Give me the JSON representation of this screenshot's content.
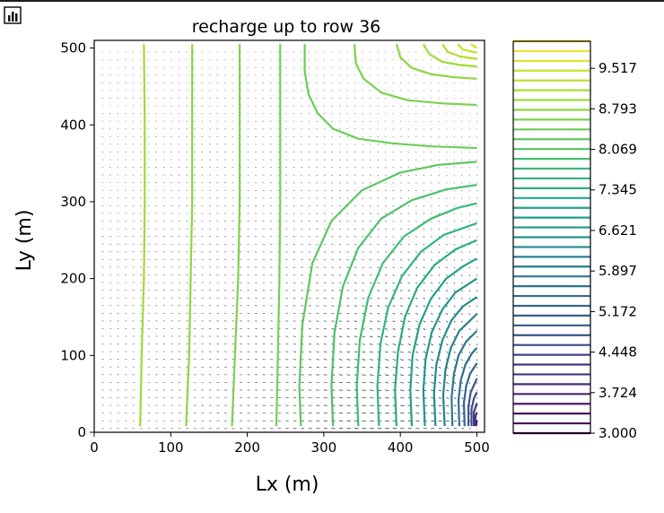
{
  "toolbar": {
    "icon": "bar-chart-icon"
  },
  "colors": {
    "viridis": [
      "#440154",
      "#482878",
      "#3e4989",
      "#31688e",
      "#26828e",
      "#1f9e89",
      "#35b779",
      "#6ece58",
      "#b5de2b",
      "#fde725"
    ],
    "quiver": "#000000",
    "axes": "#000000"
  },
  "chart_data": {
    "type": "contour",
    "title": "recharge up to row 36",
    "xlabel": "Lx (m)",
    "ylabel": "Ly (m)",
    "xlim": [
      0,
      510
    ],
    "ylim": [
      0,
      510
    ],
    "x_ticks": [
      0,
      100,
      200,
      300,
      400,
      500
    ],
    "y_ticks": [
      0,
      100,
      200,
      300,
      400,
      500
    ],
    "grid": false,
    "overlay": "quiver arrows on a 10 m grid (flow vectors)",
    "colorbar": {
      "min": 3.0,
      "max": 10.0,
      "levels": 40,
      "tick_values": [
        3.0,
        3.724,
        4.448,
        5.172,
        5.897,
        6.621,
        7.345,
        8.069,
        8.793,
        9.517
      ],
      "tick_labels": [
        "3.000",
        "3.724",
        "4.448",
        "5.172",
        "5.897",
        "6.621",
        "7.345",
        "8.069",
        "8.793",
        "9.517"
      ]
    },
    "series": [
      {
        "level": 9.0,
        "points": [
          [
            65,
            505
          ],
          [
            66,
            400
          ],
          [
            66,
            300
          ],
          [
            65,
            200
          ],
          [
            62,
            100
          ],
          [
            60,
            8
          ]
        ]
      },
      {
        "level": 8.8,
        "points": [
          [
            128,
            505
          ],
          [
            128,
            400
          ],
          [
            128,
            300
          ],
          [
            126,
            200
          ],
          [
            124,
            100
          ],
          [
            120,
            8
          ]
        ]
      },
      {
        "level": 8.6,
        "points": [
          [
            190,
            505
          ],
          [
            190,
            400
          ],
          [
            190,
            300
          ],
          [
            188,
            200
          ],
          [
            184,
            100
          ],
          [
            180,
            8
          ]
        ]
      },
      {
        "level": 8.5,
        "points": [
          [
            243,
            505
          ],
          [
            243,
            400
          ],
          [
            243,
            300
          ],
          [
            242,
            200
          ],
          [
            240,
            100
          ],
          [
            238,
            8
          ]
        ]
      },
      {
        "level": 8.4,
        "points": [
          [
            275,
            505
          ],
          [
            275,
            470
          ],
          [
            280,
            440
          ],
          [
            292,
            415
          ],
          [
            312,
            395
          ],
          [
            345,
            382
          ],
          [
            390,
            376
          ],
          [
            440,
            372
          ],
          [
            500,
            370
          ]
        ]
      },
      {
        "level": 8.6,
        "points": [
          [
            340,
            505
          ],
          [
            342,
            480
          ],
          [
            352,
            460
          ],
          [
            375,
            442
          ],
          [
            410,
            432
          ],
          [
            455,
            428
          ],
          [
            500,
            426
          ]
        ]
      },
      {
        "level": 8.8,
        "points": [
          [
            395,
            505
          ],
          [
            400,
            488
          ],
          [
            415,
            474
          ],
          [
            440,
            466
          ],
          [
            470,
            462
          ],
          [
            500,
            460
          ]
        ]
      },
      {
        "level": 9.0,
        "points": [
          [
            430,
            505
          ],
          [
            438,
            492
          ],
          [
            455,
            482
          ],
          [
            478,
            478
          ],
          [
            500,
            476
          ]
        ]
      },
      {
        "level": 9.2,
        "points": [
          [
            455,
            505
          ],
          [
            462,
            495
          ],
          [
            478,
            489
          ],
          [
            500,
            486
          ]
        ]
      },
      {
        "level": 9.4,
        "points": [
          [
            475,
            505
          ],
          [
            482,
            498
          ],
          [
            500,
            494
          ]
        ]
      },
      {
        "level": 9.6,
        "points": [
          [
            492,
            505
          ],
          [
            500,
            500
          ]
        ]
      },
      {
        "level": 8.2,
        "points": [
          [
            270,
            8
          ],
          [
            268,
            60
          ],
          [
            272,
            140
          ],
          [
            285,
            220
          ],
          [
            310,
            275
          ],
          [
            350,
            315
          ],
          [
            400,
            338
          ],
          [
            450,
            348
          ],
          [
            500,
            352
          ]
        ]
      },
      {
        "level": 8.0,
        "points": [
          [
            312,
            8
          ],
          [
            310,
            60
          ],
          [
            314,
            130
          ],
          [
            325,
            190
          ],
          [
            345,
            240
          ],
          [
            375,
            278
          ],
          [
            415,
            302
          ],
          [
            460,
            316
          ],
          [
            500,
            322
          ]
        ]
      },
      {
        "level": 7.8,
        "points": [
          [
            345,
            8
          ],
          [
            343,
            60
          ],
          [
            347,
            120
          ],
          [
            358,
            175
          ],
          [
            377,
            220
          ],
          [
            405,
            255
          ],
          [
            440,
            278
          ],
          [
            475,
            292
          ],
          [
            500,
            298
          ]
        ]
      },
      {
        "level": 7.6,
        "points": [
          [
            372,
            8
          ],
          [
            370,
            60
          ],
          [
            374,
            115
          ],
          [
            384,
            162
          ],
          [
            402,
            203
          ],
          [
            427,
            235
          ],
          [
            457,
            257
          ],
          [
            500,
            272
          ]
        ]
      },
      {
        "level": 7.3,
        "points": [
          [
            395,
            8
          ],
          [
            393,
            55
          ],
          [
            397,
            105
          ],
          [
            406,
            150
          ],
          [
            422,
            188
          ],
          [
            445,
            218
          ],
          [
            472,
            238
          ],
          [
            500,
            250
          ]
        ]
      },
      {
        "level": 7.0,
        "points": [
          [
            415,
            8
          ],
          [
            413,
            55
          ],
          [
            416,
            100
          ],
          [
            425,
            140
          ],
          [
            440,
            174
          ],
          [
            460,
            200
          ],
          [
            482,
            216
          ],
          [
            500,
            226
          ]
        ]
      },
      {
        "level": 6.7,
        "points": [
          [
            432,
            8
          ],
          [
            430,
            55
          ],
          [
            433,
            95
          ],
          [
            441,
            130
          ],
          [
            455,
            160
          ],
          [
            472,
            182
          ],
          [
            500,
            200
          ]
        ]
      },
      {
        "level": 6.4,
        "points": [
          [
            446,
            8
          ],
          [
            444,
            50
          ],
          [
            447,
            88
          ],
          [
            455,
            120
          ],
          [
            467,
            146
          ],
          [
            482,
            164
          ],
          [
            500,
            176
          ]
        ]
      },
      {
        "level": 6.1,
        "points": [
          [
            458,
            8
          ],
          [
            456,
            48
          ],
          [
            459,
            82
          ],
          [
            466,
            110
          ],
          [
            477,
            132
          ],
          [
            500,
            154
          ]
        ]
      },
      {
        "level": 5.8,
        "points": [
          [
            468,
            8
          ],
          [
            467,
            45
          ],
          [
            470,
            76
          ],
          [
            476,
            100
          ],
          [
            486,
            118
          ],
          [
            500,
            132
          ]
        ]
      },
      {
        "level": 5.5,
        "points": [
          [
            477,
            8
          ],
          [
            476,
            42
          ],
          [
            479,
            68
          ],
          [
            485,
            88
          ],
          [
            493,
            102
          ],
          [
            500,
            110
          ]
        ]
      },
      {
        "level": 5.2,
        "points": [
          [
            484,
            8
          ],
          [
            483,
            38
          ],
          [
            486,
            60
          ],
          [
            491,
            76
          ],
          [
            500,
            90
          ]
        ]
      },
      {
        "level": 4.9,
        "points": [
          [
            489,
            8
          ],
          [
            489,
            34
          ],
          [
            492,
            52
          ],
          [
            500,
            70
          ]
        ]
      },
      {
        "level": 4.6,
        "points": [
          [
            493,
            8
          ],
          [
            493,
            30
          ],
          [
            496,
            44
          ],
          [
            500,
            52
          ]
        ]
      },
      {
        "level": 4.3,
        "points": [
          [
            496,
            8
          ],
          [
            496,
            26
          ],
          [
            500,
            38
          ]
        ]
      },
      {
        "level": 4.0,
        "points": [
          [
            498,
            8
          ],
          [
            498,
            20
          ],
          [
            500,
            26
          ]
        ]
      },
      {
        "level": 3.6,
        "points": [
          [
            499,
            8
          ],
          [
            500,
            16
          ]
        ]
      }
    ]
  }
}
